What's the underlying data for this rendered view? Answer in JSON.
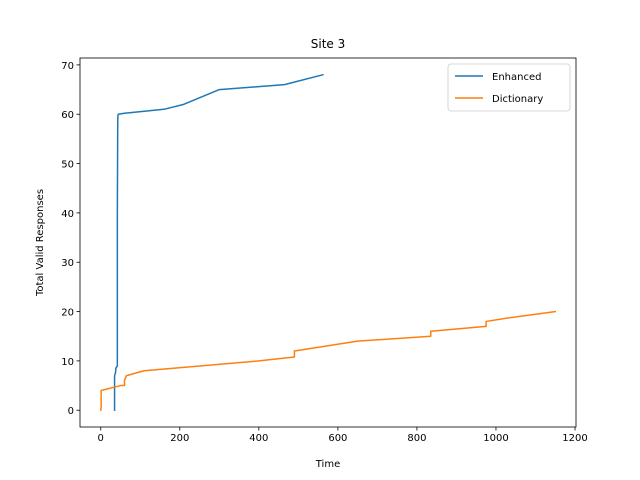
{
  "chart_data": {
    "type": "line",
    "title": "Site 3",
    "xlabel": "Time",
    "ylabel": "Total Valid Responses",
    "xlim": [
      -52.5,
      1202.5
    ],
    "ylim": [
      -3.4,
      71.4
    ],
    "xticks": [
      0,
      200,
      400,
      600,
      800,
      1000,
      1200
    ],
    "yticks": [
      0,
      10,
      20,
      30,
      40,
      50,
      60,
      70
    ],
    "grid": false,
    "legend": "top-right",
    "series": [
      {
        "name": "Enhanced",
        "color": "#1f77b4",
        "x": [
          35,
          35,
          37,
          38,
          38,
          42,
          42,
          42,
          43,
          44,
          60,
          160,
          210,
          300,
          400,
          465,
          562
        ],
        "y": [
          0,
          7,
          7.5,
          8,
          8.5,
          9,
          22,
          40,
          59,
          60,
          60.2,
          61,
          62,
          65,
          65.6,
          66,
          68
        ]
      },
      {
        "name": "Dictionary",
        "color": "#ff7f0e",
        "x": [
          0,
          1,
          1,
          50,
          60,
          60,
          65,
          100,
          110,
          400,
          490,
          490,
          650,
          835,
          835,
          975,
          975,
          1030,
          1150
        ],
        "y": [
          0,
          0.5,
          4,
          5,
          5,
          6,
          7,
          7.8,
          8,
          10,
          10.8,
          12,
          14,
          15,
          16,
          17,
          18,
          18.7,
          20
        ]
      }
    ]
  }
}
